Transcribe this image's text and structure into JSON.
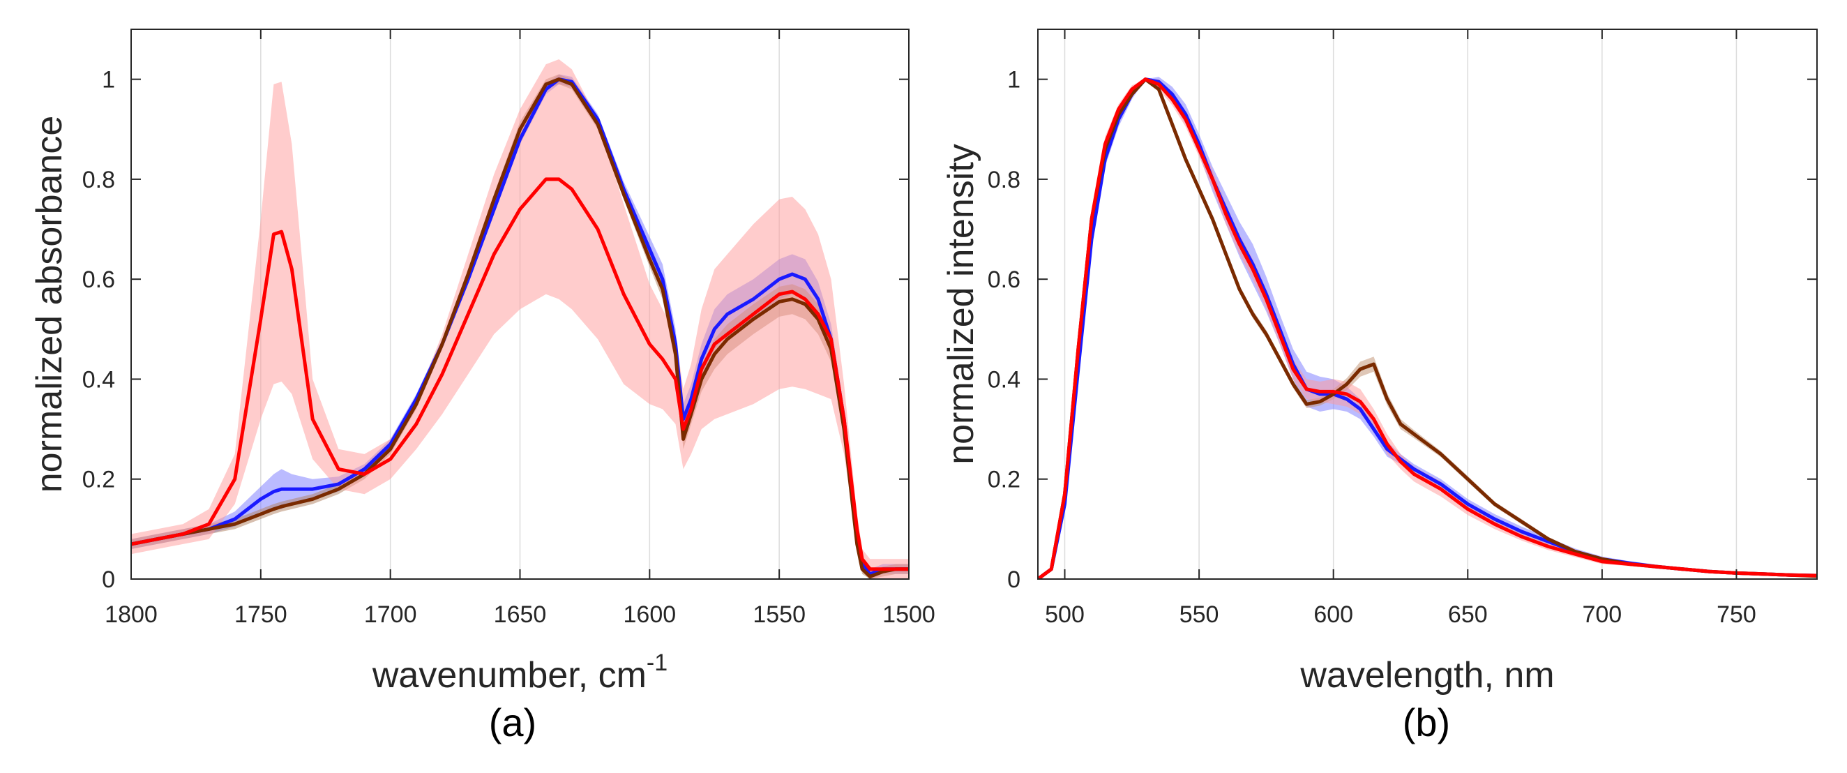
{
  "chart_data": [
    {
      "type": "line",
      "panel_label": "(a)",
      "xlabel": "wavenumber, cm",
      "xlabel_superscript": "-1",
      "ylabel": "normalized absorbance",
      "xlim": [
        1800,
        1500
      ],
      "x_reversed": true,
      "ylim": [
        0,
        1.1
      ],
      "grid": "vertical",
      "xticks": [
        1800,
        1750,
        1700,
        1650,
        1600,
        1550,
        1500
      ],
      "xtick_labels": [
        "1800",
        "1750",
        "1700",
        "1650",
        "1600",
        "1550",
        "1500"
      ],
      "yticks": [
        0,
        0.2,
        0.4,
        0.6,
        0.8,
        1
      ],
      "ytick_labels": [
        "0",
        "0.2",
        "0.4",
        "0.6",
        "0.8",
        "1"
      ],
      "x": [
        1800,
        1790,
        1780,
        1770,
        1760,
        1750,
        1745,
        1742,
        1738,
        1730,
        1720,
        1710,
        1700,
        1690,
        1680,
        1670,
        1660,
        1650,
        1640,
        1635,
        1630,
        1620,
        1610,
        1600,
        1595,
        1590,
        1587,
        1584,
        1580,
        1575,
        1570,
        1560,
        1550,
        1545,
        1540,
        1535,
        1530,
        1525,
        1520,
        1518,
        1515,
        1510,
        1505,
        1500
      ],
      "series": [
        {
          "name": "blue",
          "color": "#1a1aff",
          "band_color": "#7777ff",
          "values": [
            0.07,
            0.08,
            0.09,
            0.1,
            0.12,
            0.16,
            0.175,
            0.18,
            0.18,
            0.18,
            0.19,
            0.22,
            0.27,
            0.36,
            0.47,
            0.6,
            0.74,
            0.88,
            0.98,
            1.0,
            0.995,
            0.92,
            0.78,
            0.66,
            0.6,
            0.47,
            0.32,
            0.36,
            0.44,
            0.5,
            0.53,
            0.56,
            0.6,
            0.61,
            0.6,
            0.56,
            0.48,
            0.32,
            0.08,
            0.03,
            0.01,
            0.02,
            0.02,
            0.02
          ],
          "band": [
            0.01,
            0.01,
            0.01,
            0.01,
            0.015,
            0.025,
            0.035,
            0.04,
            0.03,
            0.02,
            0.015,
            0.01,
            0.01,
            0.01,
            0.01,
            0.01,
            0.01,
            0.01,
            0.01,
            0.01,
            0.01,
            0.01,
            0.015,
            0.025,
            0.03,
            0.03,
            0.03,
            0.03,
            0.03,
            0.04,
            0.04,
            0.04,
            0.04,
            0.04,
            0.04,
            0.035,
            0.03,
            0.02,
            0.01,
            0.01,
            0.01,
            0.01,
            0.01,
            0.01
          ]
        },
        {
          "name": "brown",
          "color": "#7a2a00",
          "band_color": "#b08060",
          "values": [
            0.07,
            0.08,
            0.09,
            0.1,
            0.11,
            0.13,
            0.14,
            0.145,
            0.15,
            0.16,
            0.18,
            0.21,
            0.26,
            0.35,
            0.47,
            0.61,
            0.76,
            0.9,
            0.99,
            1.0,
            0.99,
            0.91,
            0.77,
            0.64,
            0.58,
            0.45,
            0.28,
            0.33,
            0.4,
            0.45,
            0.48,
            0.52,
            0.555,
            0.56,
            0.55,
            0.52,
            0.46,
            0.3,
            0.07,
            0.02,
            0.005,
            0.015,
            0.02,
            0.02
          ],
          "band": [
            0.01,
            0.01,
            0.01,
            0.01,
            0.01,
            0.01,
            0.01,
            0.01,
            0.01,
            0.01,
            0.01,
            0.01,
            0.01,
            0.01,
            0.01,
            0.01,
            0.01,
            0.015,
            0.01,
            0.01,
            0.01,
            0.01,
            0.01,
            0.015,
            0.02,
            0.02,
            0.02,
            0.02,
            0.025,
            0.03,
            0.03,
            0.03,
            0.03,
            0.03,
            0.03,
            0.03,
            0.025,
            0.02,
            0.01,
            0.01,
            0.01,
            0.01,
            0.01,
            0.01
          ]
        },
        {
          "name": "red",
          "color": "#ff0000",
          "band_color": "#ff9a9a",
          "values": [
            0.07,
            0.08,
            0.09,
            0.11,
            0.2,
            0.52,
            0.69,
            0.695,
            0.62,
            0.32,
            0.22,
            0.21,
            0.24,
            0.31,
            0.41,
            0.53,
            0.65,
            0.74,
            0.8,
            0.8,
            0.78,
            0.7,
            0.57,
            0.47,
            0.44,
            0.4,
            0.3,
            0.34,
            0.42,
            0.47,
            0.49,
            0.53,
            0.57,
            0.575,
            0.56,
            0.53,
            0.48,
            0.32,
            0.1,
            0.04,
            0.02,
            0.02,
            0.02,
            0.02
          ],
          "band": [
            0.02,
            0.02,
            0.02,
            0.03,
            0.05,
            0.2,
            0.3,
            0.3,
            0.25,
            0.08,
            0.04,
            0.04,
            0.04,
            0.05,
            0.08,
            0.12,
            0.16,
            0.2,
            0.23,
            0.24,
            0.24,
            0.22,
            0.18,
            0.12,
            0.1,
            0.09,
            0.08,
            0.09,
            0.12,
            0.15,
            0.16,
            0.18,
            0.19,
            0.19,
            0.18,
            0.16,
            0.12,
            0.07,
            0.03,
            0.02,
            0.02,
            0.02,
            0.02,
            0.02
          ]
        }
      ]
    },
    {
      "type": "line",
      "panel_label": "(b)",
      "xlabel": "wavelength, nm",
      "ylabel": "normalized intensity",
      "xlim": [
        490,
        780
      ],
      "ylim": [
        0,
        1.1
      ],
      "grid": "vertical",
      "xticks": [
        500,
        550,
        600,
        650,
        700,
        750
      ],
      "xtick_labels": [
        "500",
        "550",
        "600",
        "650",
        "700",
        "750"
      ],
      "yticks": [
        0,
        0.2,
        0.4,
        0.6,
        0.8,
        1
      ],
      "ytick_labels": [
        "0",
        "0.2",
        "0.4",
        "0.6",
        "0.8",
        "1"
      ],
      "x": [
        490,
        495,
        500,
        505,
        510,
        515,
        520,
        525,
        530,
        535,
        540,
        545,
        550,
        555,
        560,
        565,
        570,
        575,
        580,
        585,
        590,
        595,
        600,
        605,
        610,
        615,
        620,
        625,
        630,
        640,
        650,
        660,
        670,
        680,
        690,
        700,
        710,
        720,
        730,
        740,
        750,
        760,
        770,
        780
      ],
      "series": [
        {
          "name": "blue",
          "color": "#1a1aff",
          "band_color": "#7777ff",
          "values": [
            0.0,
            0.02,
            0.15,
            0.42,
            0.68,
            0.84,
            0.92,
            0.97,
            1.0,
            0.995,
            0.97,
            0.93,
            0.87,
            0.8,
            0.74,
            0.68,
            0.63,
            0.57,
            0.5,
            0.43,
            0.38,
            0.37,
            0.37,
            0.36,
            0.34,
            0.3,
            0.26,
            0.24,
            0.22,
            0.19,
            0.15,
            0.12,
            0.095,
            0.075,
            0.055,
            0.04,
            0.032,
            0.025,
            0.02,
            0.015,
            0.012,
            0.01,
            0.008,
            0.007
          ],
          "band": [
            0.0,
            0.005,
            0.01,
            0.015,
            0.015,
            0.015,
            0.015,
            0.01,
            0.0,
            0.01,
            0.015,
            0.02,
            0.02,
            0.025,
            0.03,
            0.035,
            0.04,
            0.035,
            0.03,
            0.03,
            0.035,
            0.035,
            0.03,
            0.025,
            0.02,
            0.015,
            0.015,
            0.01,
            0.01,
            0.01,
            0.01,
            0.01,
            0.01,
            0.008,
            0.006,
            0.005,
            0.004,
            0.004,
            0.003,
            0.003,
            0.003,
            0.003,
            0.003,
            0.003
          ]
        },
        {
          "name": "brown",
          "color": "#7a2a00",
          "band_color": "#c09070",
          "values": [
            0.0,
            0.02,
            0.17,
            0.46,
            0.72,
            0.86,
            0.93,
            0.97,
            1.0,
            0.98,
            0.91,
            0.84,
            0.78,
            0.72,
            0.65,
            0.58,
            0.53,
            0.49,
            0.44,
            0.39,
            0.35,
            0.355,
            0.37,
            0.39,
            0.42,
            0.43,
            0.36,
            0.31,
            0.29,
            0.25,
            0.2,
            0.15,
            0.115,
            0.08,
            0.055,
            0.04,
            0.03,
            0.025,
            0.02,
            0.015,
            0.012,
            0.01,
            0.008,
            0.006
          ],
          "band": [
            0.0,
            0.005,
            0.008,
            0.01,
            0.01,
            0.01,
            0.008,
            0.005,
            0.0,
            0.005,
            0.008,
            0.008,
            0.008,
            0.008,
            0.008,
            0.008,
            0.008,
            0.008,
            0.008,
            0.008,
            0.008,
            0.008,
            0.01,
            0.012,
            0.015,
            0.015,
            0.012,
            0.01,
            0.008,
            0.006,
            0.006,
            0.005,
            0.005,
            0.004,
            0.004,
            0.004,
            0.003,
            0.003,
            0.003,
            0.003,
            0.003,
            0.003,
            0.003,
            0.003
          ]
        },
        {
          "name": "red",
          "color": "#ff0000",
          "band_color": "#ff9a9a",
          "values": [
            0.0,
            0.02,
            0.17,
            0.46,
            0.72,
            0.87,
            0.94,
            0.98,
            1.0,
            0.99,
            0.96,
            0.92,
            0.86,
            0.8,
            0.73,
            0.67,
            0.62,
            0.56,
            0.49,
            0.42,
            0.38,
            0.375,
            0.375,
            0.37,
            0.355,
            0.32,
            0.27,
            0.235,
            0.21,
            0.18,
            0.14,
            0.11,
            0.085,
            0.065,
            0.05,
            0.035,
            0.03,
            0.025,
            0.02,
            0.015,
            0.012,
            0.01,
            0.008,
            0.007
          ],
          "band": [
            0.0,
            0.005,
            0.01,
            0.015,
            0.015,
            0.015,
            0.01,
            0.008,
            0.0,
            0.01,
            0.012,
            0.015,
            0.015,
            0.018,
            0.02,
            0.02,
            0.02,
            0.02,
            0.02,
            0.02,
            0.02,
            0.02,
            0.025,
            0.025,
            0.025,
            0.02,
            0.02,
            0.015,
            0.015,
            0.015,
            0.012,
            0.01,
            0.008,
            0.007,
            0.006,
            0.005,
            0.004,
            0.004,
            0.003,
            0.003,
            0.003,
            0.003,
            0.003,
            0.003
          ]
        }
      ]
    }
  ]
}
